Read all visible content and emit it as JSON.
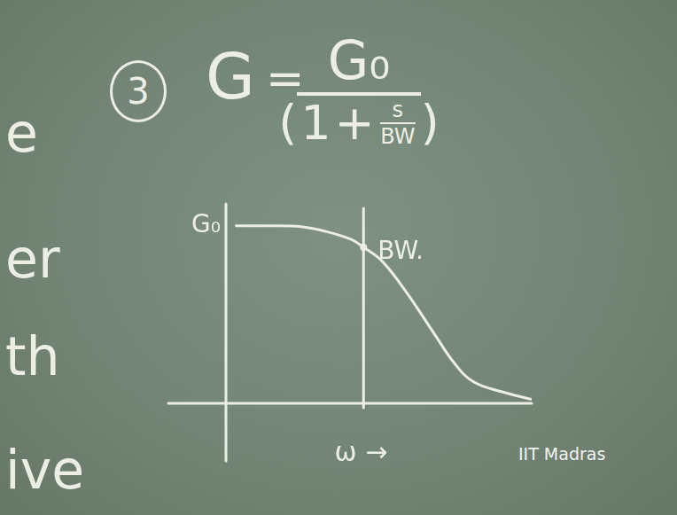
{
  "board": {
    "item_number": "3",
    "formula": {
      "lhs": "G",
      "equals": "=",
      "numerator": "G₀",
      "open": "(",
      "one": "1",
      "plus": "+",
      "s": "s",
      "bw": "BW",
      "close": ")"
    },
    "margin_text": [
      "e",
      "er",
      "th",
      "ive"
    ],
    "watermark": "IIT Madras"
  },
  "chart_data": {
    "type": "line",
    "x": [
      0.3,
      1.3,
      2.5,
      3.3,
      4.1,
      4.5,
      5.1,
      5.9,
      6.8,
      7.5,
      8.1,
      9.0,
      10.0
    ],
    "values": [
      9.1,
      9.1,
      9.05,
      8.8,
      8.4,
      8.0,
      7.3,
      5.7,
      3.6,
      2.0,
      1.1,
      0.6,
      0.2
    ],
    "color": "#eceee4",
    "xlim": [
      0,
      10
    ],
    "ylim": [
      0,
      10
    ],
    "tick_labels": false,
    "grid": false,
    "x_label": "ω →",
    "annotations": [
      {
        "text": "G₀",
        "x": 0,
        "y": 9.1
      },
      {
        "text": "BW.",
        "x": 4.5,
        "y": 8.0
      }
    ]
  }
}
